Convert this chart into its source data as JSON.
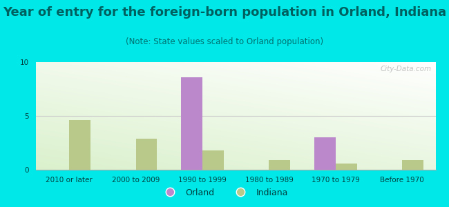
{
  "title": "Year of entry for the foreign-born population in Orland, Indiana",
  "subtitle": "(Note: State values scaled to Orland population)",
  "categories": [
    "2010 or later",
    "2000 to 2009",
    "1990 to 1999",
    "1980 to 1989",
    "1970 to 1979",
    "Before 1970"
  ],
  "orland_values": [
    0,
    0,
    8.6,
    0,
    3.0,
    0
  ],
  "indiana_values": [
    4.6,
    2.9,
    1.8,
    0.9,
    0.55,
    0.9
  ],
  "orland_color": "#bb88cc",
  "indiana_color": "#b8c98a",
  "background_color": "#00e8e8",
  "ylim": [
    0,
    10
  ],
  "yticks": [
    0,
    5,
    10
  ],
  "bar_width": 0.32,
  "title_fontsize": 13,
  "subtitle_fontsize": 8.5,
  "tick_fontsize": 7.5,
  "watermark": "City-Data.com",
  "grid_color": "#cccccc",
  "title_color": "#006060",
  "subtitle_color": "#007070",
  "tick_color": "#004040"
}
